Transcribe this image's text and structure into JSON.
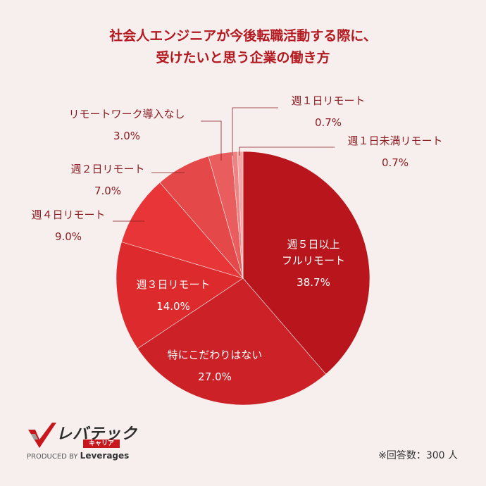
{
  "title_line1": "社会人エンジニアが今後転職活動する際に、",
  "title_line2": "受けたいと思う企業の働き方",
  "footnote": "※回答数：300 人",
  "logo": {
    "main": "レバテック",
    "sub": "キャリア",
    "produced": "PRODUCED BY",
    "brand": "Leverages",
    "accent": "#c8161d"
  },
  "chart_data": {
    "type": "pie",
    "start": "top",
    "direction": "clockwise",
    "slices": [
      {
        "label_lines": [
          "週５日以上",
          "フルリモート"
        ],
        "value": 38.7,
        "display": "38.7%",
        "color": "#b8161c"
      },
      {
        "label_lines": [
          "特にこだわりはない"
        ],
        "value": 27.0,
        "display": "27.0%",
        "color": "#cc2126"
      },
      {
        "label_lines": [
          "週３日リモート"
        ],
        "value": 14.0,
        "display": "14.0%",
        "color": "#dc2a2d"
      },
      {
        "label_lines": [
          "週４日リモート"
        ],
        "value": 9.0,
        "display": "9.0%",
        "color": "#e83638"
      },
      {
        "label_lines": [
          "週２日リモート"
        ],
        "value": 7.0,
        "display": "7.0%",
        "color": "#e44849"
      },
      {
        "label_lines": [
          "リモートワーク導入なし"
        ],
        "value": 3.0,
        "display": "3.0%",
        "color": "#ea5d5e"
      },
      {
        "label_lines": [
          "週１日リモート"
        ],
        "value": 0.7,
        "display": "0.7%",
        "color": "#ef8384"
      },
      {
        "label_lines": [
          "週１日未満リモート"
        ],
        "value": 0.7,
        "display": "0.7%",
        "color": "#f3a6a6"
      }
    ]
  }
}
